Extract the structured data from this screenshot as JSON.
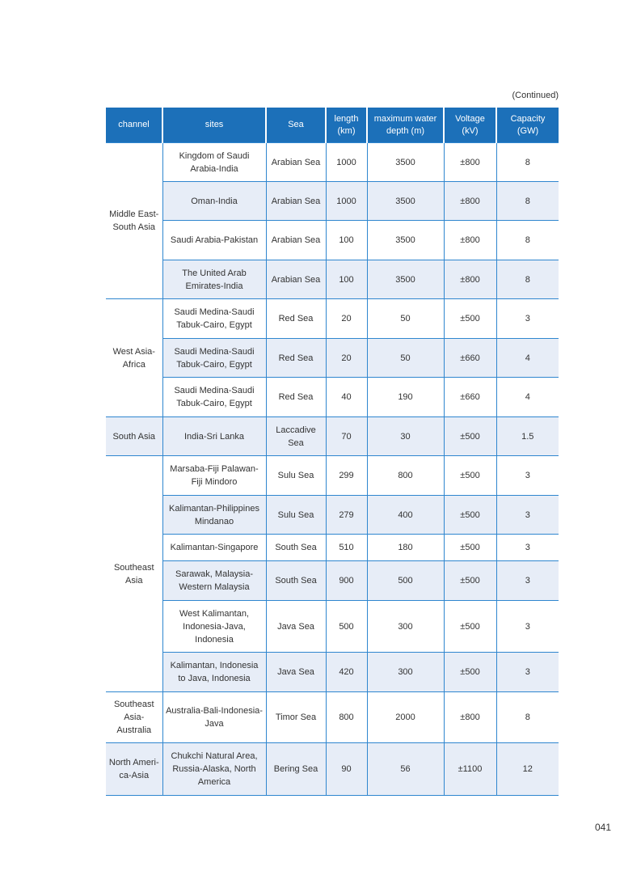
{
  "continued_label": "(Continued)",
  "page_number": "041",
  "colors": {
    "header_bg": "#1c70b9",
    "border": "#2f86cf",
    "row_shade": "#e7edf7"
  },
  "table": {
    "headers": [
      "channel",
      "sites",
      "Sea",
      "length (km)",
      "maximum water depth (m)",
      "Voltage (kV)",
      "Capacity (GW)"
    ],
    "groups": [
      {
        "channel": "Middle East-South Asia",
        "rows": [
          {
            "sites": "Kingdom of Saudi Arabia-India",
            "sea": "Arabian Sea",
            "length": "1000",
            "depth": "3500",
            "voltage": "±800",
            "capacity": "8"
          },
          {
            "sites": "Oman-India",
            "sea": "Arabian Sea",
            "length": "1000",
            "depth": "3500",
            "voltage": "±800",
            "capacity": "8"
          },
          {
            "sites": "Saudi Arabia-Pakistan",
            "sea": "Arabian Sea",
            "length": "100",
            "depth": "3500",
            "voltage": "±800",
            "capacity": "8"
          },
          {
            "sites": "The United Arab Emirates-India",
            "sea": "Arabian Sea",
            "length": "100",
            "depth": "3500",
            "voltage": "±800",
            "capacity": "8"
          }
        ]
      },
      {
        "channel": "West Asia-Africa",
        "rows": [
          {
            "sites": "Saudi Medina-Saudi Tabuk-Cairo, Egypt",
            "sea": "Red Sea",
            "length": "20",
            "depth": "50",
            "voltage": "±500",
            "capacity": "3"
          },
          {
            "sites": "Saudi Medina-Saudi Tabuk-Cairo, Egypt",
            "sea": "Red Sea",
            "length": "20",
            "depth": "50",
            "voltage": "±660",
            "capacity": "4"
          },
          {
            "sites": "Saudi Medina-Saudi Tabuk-Cairo, Egypt",
            "sea": "Red Sea",
            "length": "40",
            "depth": "190",
            "voltage": "±660",
            "capacity": "4"
          }
        ]
      },
      {
        "channel": "South Asia",
        "rows": [
          {
            "sites": "India-Sri Lanka",
            "sea": "Laccadive Sea",
            "length": "70",
            "depth": "30",
            "voltage": "±500",
            "capacity": "1.5"
          }
        ]
      },
      {
        "channel": "Southeast Asia",
        "rows": [
          {
            "sites": "Marsaba-Fiji Palawan-Fiji Mindoro",
            "sea": "Sulu Sea",
            "length": "299",
            "depth": "800",
            "voltage": "±500",
            "capacity": "3"
          },
          {
            "sites": "Kalimantan-Philippines Mindanao",
            "sea": "Sulu Sea",
            "length": "279",
            "depth": "400",
            "voltage": "±500",
            "capacity": "3"
          },
          {
            "sites": "Kalimantan-Singapore",
            "sea": "South Sea",
            "length": "510",
            "depth": "180",
            "voltage": "±500",
            "capacity": "3"
          },
          {
            "sites": "Sarawak, Malaysia-Western Malaysia",
            "sea": "South Sea",
            "length": "900",
            "depth": "500",
            "voltage": "±500",
            "capacity": "3"
          },
          {
            "sites": "West Kalimantan, Indonesia-Java, Indonesia",
            "sea": "Java Sea",
            "length": "500",
            "depth": "300",
            "voltage": "±500",
            "capacity": "3"
          },
          {
            "sites": "Kalimantan, Indonesia to Java, Indonesia",
            "sea": "Java Sea",
            "length": "420",
            "depth": "300",
            "voltage": "±500",
            "capacity": "3"
          }
        ]
      },
      {
        "channel": "Southeast Asia-Australia",
        "rows": [
          {
            "sites": "Australia-Bali-Indonesia-Java",
            "sea": "Timor Sea",
            "length": "800",
            "depth": "2000",
            "voltage": "±800",
            "capacity": "8"
          }
        ]
      },
      {
        "channel": "North Ameri-ca-Asia",
        "rows": [
          {
            "sites": "Chukchi Natural Area, Russia-Alaska, North America",
            "sea": "Bering Sea",
            "length": "90",
            "depth": "56",
            "voltage": "±1100",
            "capacity": "12"
          }
        ]
      }
    ]
  }
}
